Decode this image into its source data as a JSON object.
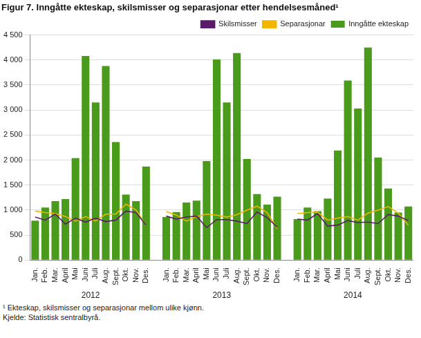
{
  "chart_data": {
    "type": "bar",
    "title": "Figur 7. Inngåtte ekteskap, skilsmisser og separasjonar etter hendelsesmåned¹",
    "categories": [
      "Jan.",
      "Feb.",
      "Mar.",
      "April",
      "Mai",
      "Juni",
      "Juli",
      "Aug.",
      "Sept.",
      "Okt.",
      "Nov.",
      "Des.",
      null,
      "Jan.",
      "Feb.",
      "Mar.",
      "April",
      "Mai",
      "Juni",
      "Juli",
      "Aug.",
      "Sept.",
      "Okt.",
      "Nov.",
      "Des.",
      null,
      "Jan.",
      "Feb.",
      "Mar.",
      "April",
      "Mai",
      "Juni",
      "Juli",
      "Aug.",
      "Sept.",
      "Okt.",
      "Nov.",
      "Des."
    ],
    "group_labels": [
      "2012",
      "2013",
      "2014"
    ],
    "series": [
      {
        "name": "Inngåtte ekteskap",
        "type": "bar",
        "color": "#4a9a1c",
        "values": [
          790,
          1050,
          1180,
          1220,
          2040,
          4080,
          3150,
          3880,
          2360,
          1310,
          1180,
          1870,
          null,
          860,
          960,
          1150,
          1190,
          1980,
          4010,
          3150,
          4140,
          2020,
          1320,
          1110,
          1270,
          null,
          820,
          1050,
          980,
          1230,
          2190,
          3590,
          3030,
          4250,
          2050,
          1430,
          950,
          1070
        ]
      },
      {
        "name": "Skilsmisser",
        "type": "line",
        "color": "#5c1a6b",
        "values": [
          860,
          800,
          920,
          720,
          840,
          760,
          840,
          770,
          800,
          980,
          950,
          700,
          null,
          880,
          820,
          860,
          880,
          650,
          810,
          810,
          780,
          730,
          960,
          850,
          660,
          null,
          820,
          800,
          930,
          680,
          700,
          790,
          750,
          760,
          730,
          910,
          880,
          790
        ]
      },
      {
        "name": "Separasjonar",
        "type": "line",
        "color": "#f2b600",
        "values": [
          980,
          950,
          930,
          870,
          780,
          870,
          780,
          920,
          920,
          1120,
          1000,
          690,
          null,
          970,
          900,
          780,
          870,
          920,
          900,
          860,
          910,
          1000,
          1080,
          950,
          630,
          null,
          930,
          950,
          960,
          800,
          840,
          870,
          800,
          940,
          1000,
          1070,
          940,
          700
        ]
      }
    ],
    "ylim": [
      0,
      4500
    ],
    "yticks": [
      0,
      500,
      {
        "value": 1000,
        "label": "1 000"
      },
      {
        "value": 1500,
        "label": "1 500"
      },
      {
        "value": 2000,
        "label": "2 000"
      },
      {
        "value": 2500,
        "label": "2 500"
      },
      {
        "value": 3000,
        "label": "3 000"
      },
      {
        "value": 3500,
        "label": "3 500"
      },
      {
        "value": 4000,
        "label": "4 000"
      },
      {
        "value": 4500,
        "label": "4 500"
      }
    ],
    "grid": true,
    "legend": "top right",
    "notes": [
      "¹ Ekteskap, skilsmisser og separasjonar mellom ulike kjønn.",
      "Kjelde: Statistisk sentralbyrå."
    ]
  }
}
